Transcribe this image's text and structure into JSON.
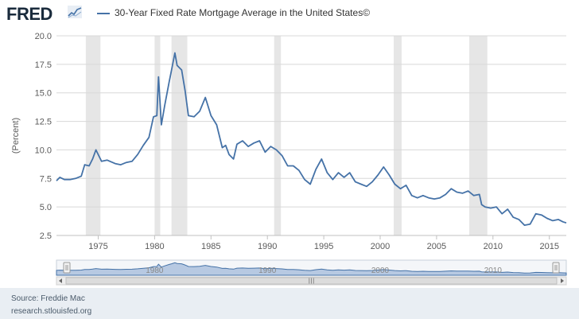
{
  "header": {
    "logo": "FRED",
    "logo_mark": "trend-line-logo"
  },
  "chart_data": {
    "type": "line",
    "title": "",
    "xlabel": "",
    "ylabel": "(Percent)",
    "xlim": [
      1971.3,
      2016.5
    ],
    "ylim": [
      2.5,
      20.0
    ],
    "yticks": [
      2.5,
      5.0,
      7.5,
      10.0,
      12.5,
      15.0,
      17.5,
      20.0
    ],
    "ytick_labels": [
      "2.5",
      "5.0",
      "7.5",
      "10.0",
      "12.5",
      "15.0",
      "17.5",
      "20.0"
    ],
    "xticks": [
      1975,
      1980,
      1985,
      1990,
      1995,
      2000,
      2005,
      2010,
      2015
    ],
    "xtick_labels": [
      "1975",
      "1980",
      "1985",
      "1990",
      "1995",
      "2000",
      "2005",
      "2010",
      "2015"
    ],
    "grid": true,
    "legend_position": "top-left",
    "recessions": [
      [
        1973.9,
        1975.2
      ],
      [
        1980.0,
        1980.5
      ],
      [
        1981.5,
        1982.9
      ],
      [
        1990.6,
        1991.2
      ],
      [
        2001.2,
        2001.9
      ],
      [
        2007.9,
        2009.5
      ]
    ],
    "series": [
      {
        "name": "30-Year Fixed Rate Mortgage Average in the United States©",
        "color": "#4572a7",
        "x": [
          1971.3,
          1971.6,
          1972.0,
          1972.5,
          1973.0,
          1973.5,
          1973.8,
          1974.2,
          1974.5,
          1974.8,
          1975.3,
          1975.8,
          1976.5,
          1977.0,
          1977.5,
          1978.0,
          1978.5,
          1979.0,
          1979.5,
          1979.9,
          1980.2,
          1980.35,
          1980.6,
          1980.9,
          1981.3,
          1981.5,
          1981.8,
          1982.0,
          1982.4,
          1982.7,
          1983.0,
          1983.5,
          1984.0,
          1984.5,
          1985.0,
          1985.5,
          1986.0,
          1986.3,
          1986.6,
          1987.0,
          1987.3,
          1987.8,
          1988.3,
          1988.8,
          1989.3,
          1989.8,
          1990.3,
          1990.8,
          1991.3,
          1991.8,
          1992.3,
          1992.8,
          1993.3,
          1993.8,
          1994.3,
          1994.8,
          1995.3,
          1995.8,
          1996.3,
          1996.8,
          1997.3,
          1997.8,
          1998.3,
          1998.8,
          1999.3,
          1999.8,
          2000.3,
          2000.8,
          2001.3,
          2001.8,
          2002.3,
          2002.8,
          2003.3,
          2003.8,
          2004.3,
          2004.8,
          2005.3,
          2005.8,
          2006.3,
          2006.8,
          2007.3,
          2007.8,
          2008.3,
          2008.8,
          2009.0,
          2009.3,
          2009.8,
          2010.3,
          2010.8,
          2011.3,
          2011.8,
          2012.3,
          2012.8,
          2013.3,
          2013.8,
          2014.3,
          2014.8,
          2015.3,
          2015.8,
          2016.2,
          2016.5
        ],
        "y": [
          7.3,
          7.6,
          7.4,
          7.4,
          7.5,
          7.7,
          8.7,
          8.6,
          9.2,
          10.0,
          9.0,
          9.1,
          8.8,
          8.7,
          8.9,
          9.0,
          9.6,
          10.4,
          11.1,
          12.9,
          13.0,
          16.4,
          12.2,
          13.9,
          16.0,
          17.0,
          18.5,
          17.4,
          17.0,
          15.2,
          13.0,
          12.9,
          13.4,
          14.6,
          13.0,
          12.2,
          10.2,
          10.4,
          9.6,
          9.2,
          10.5,
          10.8,
          10.3,
          10.6,
          10.8,
          9.8,
          10.3,
          10.0,
          9.5,
          8.6,
          8.6,
          8.2,
          7.4,
          7.0,
          8.3,
          9.2,
          8.0,
          7.4,
          8.0,
          7.6,
          8.0,
          7.2,
          7.0,
          6.8,
          7.2,
          7.8,
          8.5,
          7.8,
          7.0,
          6.6,
          6.9,
          6.0,
          5.8,
          6.0,
          5.8,
          5.7,
          5.8,
          6.1,
          6.6,
          6.3,
          6.2,
          6.4,
          6.0,
          6.1,
          5.2,
          5.0,
          4.9,
          5.0,
          4.4,
          4.8,
          4.1,
          3.9,
          3.4,
          3.5,
          4.4,
          4.3,
          4.0,
          3.8,
          3.9,
          3.7,
          3.6
        ]
      }
    ]
  },
  "navigator": {
    "labels": [
      "1980",
      "1990",
      "2000",
      "2010"
    ],
    "scrollbar_grip": "III"
  },
  "footer": {
    "source": "Source: Freddie Mac",
    "site": "research.stlouisfed.org"
  }
}
